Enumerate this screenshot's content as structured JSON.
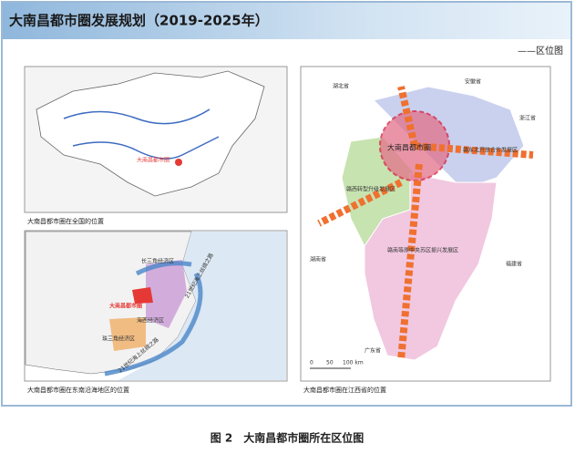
{
  "header": {
    "title": "大南昌都市圈发展规划（2019-2025年）",
    "subtitle": "——区位图"
  },
  "panels": [
    {
      "caption": "大南昌都市圈在全国的位置",
      "labels": [
        "大南昌都市圈"
      ]
    },
    {
      "caption": "大南昌都市圈在东南沿海地区的位置",
      "labels": [
        "长三角经济区",
        "大南昌都市圈",
        "海西经济区",
        "珠三角经济区",
        "21世纪海上丝绸之路",
        "21世纪海上丝绸之路"
      ]
    },
    {
      "caption": "大南昌都市圈在江西省的位置",
      "labels": [
        "湖北省",
        "安徽省",
        "浙江省",
        "湖南省",
        "福建省",
        "广东省",
        "大南昌都市圈",
        "赣东北开放合作发展区",
        "赣西转型升级发展区",
        "赣南等原中央苏区振兴发展区"
      ],
      "scale": [
        "0",
        "50",
        "100 km"
      ]
    }
  ],
  "figure_caption": "图 2　大南昌都市圈所在区位图"
}
